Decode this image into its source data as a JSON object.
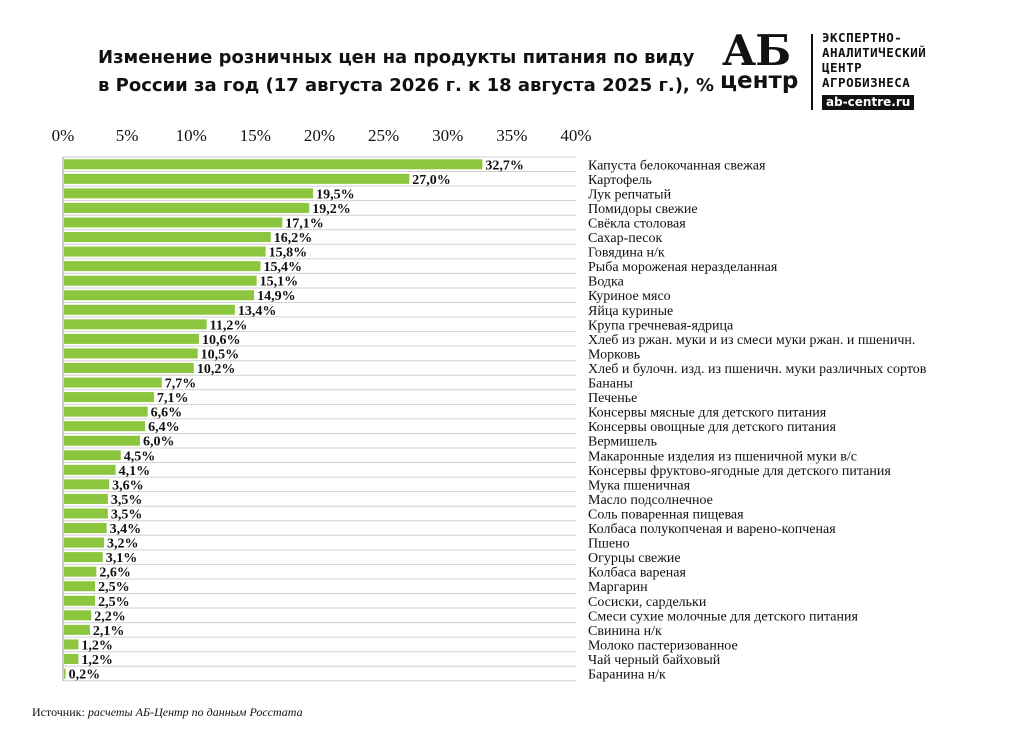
{
  "title": {
    "line1": "Изменение розничных цен на продукты питания по виду",
    "line2": "в России за год (17 августа 2026 г. к 18 августа 2025 г.), %"
  },
  "logo": {
    "ab": "АБ",
    "centr": "центр",
    "line1": "ЭКСПЕРТНО-",
    "line2": "АНАЛИТИЧЕСКИЙ",
    "line3": "ЦЕНТР",
    "line4": "АГРОБИЗНЕСА",
    "url": "ab-centre.ru"
  },
  "source": {
    "label": "Источник:",
    "text": "расчеты АБ-Центр по данным Росстата"
  },
  "colors": {
    "bar": "#8cc63f",
    "grid": "#d0d0d0",
    "text": "#111111"
  },
  "chart_data": {
    "type": "bar",
    "orientation": "horizontal",
    "xlim": [
      0,
      40
    ],
    "xticks": [
      "0%",
      "5%",
      "10%",
      "15%",
      "20%",
      "25%",
      "30%",
      "35%",
      "40%"
    ],
    "grid": true,
    "categories": [
      "Капуста белокочанная свежая",
      "Картофель",
      "Лук репчатый",
      "Помидоры свежие",
      "Свёкла столовая",
      "Сахар-песок",
      "Говядина н/к",
      "Рыба мороженая неразделанная",
      "Водка",
      "Куриное мясо",
      "Яйца куриные",
      "Крупа гречневая-ядрица",
      "Хлеб из ржан. муки и из смеси муки ржан. и пшеничн.",
      "Морковь",
      "Хлеб и булочн. изд. из пшеничн. муки различных сортов",
      "Бананы",
      "Печенье",
      "Консервы мясные для детского питания",
      "Консервы овощные для детского питания",
      "Вермишель",
      "Макаронные изделия из пшеничной муки в/с",
      "Консервы фруктово-ягодные для детского питания",
      "Мука пшеничная",
      "Масло подсолнечное",
      "Соль поваренная пищевая",
      "Колбаса полукопченая и варено-копченая",
      "Пшено",
      "Огурцы свежие",
      "Колбаса вареная",
      "Маргарин",
      "Сосиски, сардельки",
      "Смеси сухие молочные для детского питания",
      "Свинина н/к",
      "Молоко пастеризованное",
      "Чай черный байховый",
      "Баранина н/к"
    ],
    "values": [
      32.7,
      27.0,
      19.5,
      19.2,
      17.1,
      16.2,
      15.8,
      15.4,
      15.1,
      14.9,
      13.4,
      11.2,
      10.6,
      10.5,
      10.2,
      7.7,
      7.1,
      6.6,
      6.4,
      6.0,
      4.5,
      4.1,
      3.6,
      3.5,
      3.5,
      3.4,
      3.2,
      3.1,
      2.6,
      2.5,
      2.5,
      2.2,
      2.1,
      1.2,
      1.2,
      0.2
    ],
    "value_labels": [
      "32,7%",
      "27,0%",
      "19,5%",
      "19,2%",
      "17,1%",
      "16,2%",
      "15,8%",
      "15,4%",
      "15,1%",
      "14,9%",
      "13,4%",
      "11,2%",
      "10,6%",
      "10,5%",
      "10,2%",
      "7,7%",
      "7,1%",
      "6,6%",
      "6,4%",
      "6,0%",
      "4,5%",
      "4,1%",
      "3,6%",
      "3,5%",
      "3,5%",
      "3,4%",
      "3,2%",
      "3,1%",
      "2,6%",
      "2,5%",
      "2,5%",
      "2,2%",
      "2,1%",
      "1,2%",
      "1,2%",
      "0,2%"
    ]
  }
}
